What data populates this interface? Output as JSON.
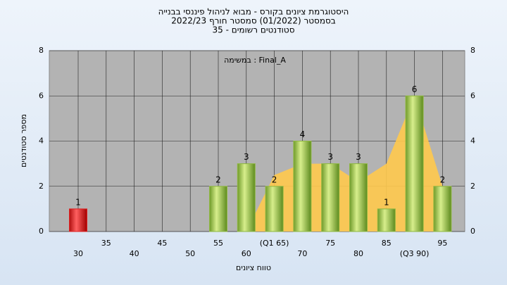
{
  "chart_data": {
    "type": "bar",
    "title": "היסטוגרמת ציונים בקורס - מבוא לניהול פיננסי בבנייה",
    "subtitle": "בסמסטר  (01/2022)  סמסטר חורף 2022/23",
    "subtitle2": "סטודנטים רשומים - 35",
    "annotation": "במשימה : Final_A",
    "y_label": "מספר סטודנטים",
    "x_label": "טווח ציונים",
    "categories": [
      "30",
      "35",
      "40",
      "45",
      "50",
      "55",
      "60",
      "(Q1 65)",
      "70",
      "75",
      "80",
      "85",
      "(Q3 90)",
      "95"
    ],
    "values": [
      1,
      0,
      0,
      0,
      0,
      2,
      3,
      2,
      4,
      3,
      3,
      1,
      6,
      2
    ],
    "colors": [
      "#e02020",
      "#8fb840",
      "#8fb840",
      "#8fb840",
      "#8fb840",
      "#8fb840",
      "#8fb840",
      "#8fb840",
      "#8fb840",
      "#8fb840",
      "#8fb840",
      "#8fb840",
      "#8fb840",
      "#8fb840"
    ],
    "area": {
      "color": "#ffc94d",
      "values": [
        null,
        null,
        null,
        null,
        null,
        null,
        0,
        2.5,
        3,
        3,
        2.2,
        3,
        6,
        2
      ]
    },
    "ylim": [
      0,
      8
    ],
    "yticks": [
      0,
      2,
      4,
      6,
      8
    ],
    "grid": true
  }
}
